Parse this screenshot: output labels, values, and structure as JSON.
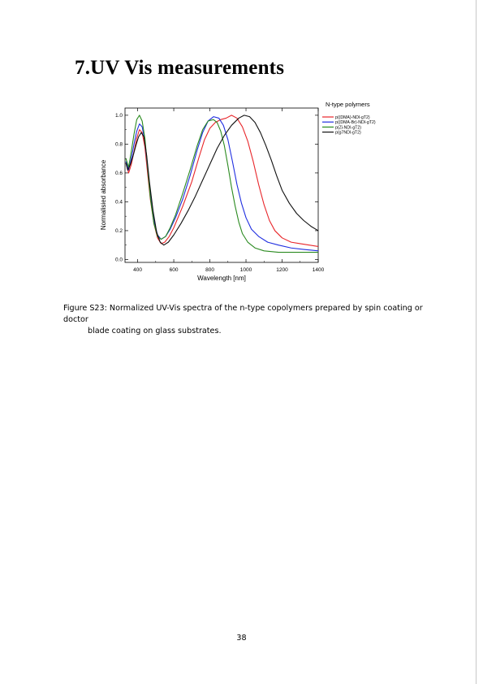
{
  "section": {
    "title": "7.UV Vis measurements"
  },
  "figure": {
    "caption_line1": "Figure S23: Normalized UV-Vis spectra of the n-type copolymers prepared by spin coating or doctor",
    "caption_line2": "blade coating on glass substrates."
  },
  "page_number": "38",
  "chart_data": {
    "type": "line",
    "title": "",
    "legend_title": "N-type polymers",
    "legend_position": "top-right",
    "xlabel": "Wavelength [nm]",
    "ylabel": "Normalisied absorbance",
    "xlim": [
      330,
      1400
    ],
    "ylim": [
      -0.02,
      1.05
    ],
    "xticks": [
      400,
      600,
      800,
      1000,
      1200,
      1400
    ],
    "xtick_labels": [
      "400",
      "600",
      "800",
      "1000",
      "1200",
      "1400"
    ],
    "yticks": [
      0.0,
      0.2,
      0.4,
      0.6,
      0.8,
      1.0
    ],
    "ytick_labels": [
      "0.0",
      "0.2",
      "0.4",
      "0.6",
      "0.8",
      "1.0"
    ],
    "grid": false,
    "series": [
      {
        "name": "p((DMA)-NDI-gT2)",
        "color": "#e8262a",
        "points": [
          [
            335,
            0.67
          ],
          [
            350,
            0.6
          ],
          [
            365,
            0.66
          ],
          [
            380,
            0.75
          ],
          [
            395,
            0.84
          ],
          [
            410,
            0.9
          ],
          [
            425,
            0.88
          ],
          [
            440,
            0.78
          ],
          [
            455,
            0.6
          ],
          [
            470,
            0.42
          ],
          [
            490,
            0.25
          ],
          [
            510,
            0.15
          ],
          [
            530,
            0.11
          ],
          [
            550,
            0.12
          ],
          [
            575,
            0.16
          ],
          [
            600,
            0.22
          ],
          [
            650,
            0.37
          ],
          [
            700,
            0.54
          ],
          [
            740,
            0.71
          ],
          [
            770,
            0.83
          ],
          [
            800,
            0.91
          ],
          [
            830,
            0.95
          ],
          [
            860,
            0.97
          ],
          [
            890,
            0.98
          ],
          [
            920,
            1.0
          ],
          [
            950,
            0.98
          ],
          [
            980,
            0.92
          ],
          [
            1010,
            0.82
          ],
          [
            1040,
            0.68
          ],
          [
            1070,
            0.52
          ],
          [
            1100,
            0.38
          ],
          [
            1130,
            0.27
          ],
          [
            1160,
            0.2
          ],
          [
            1200,
            0.15
          ],
          [
            1250,
            0.12
          ],
          [
            1300,
            0.11
          ],
          [
            1350,
            0.1
          ],
          [
            1400,
            0.09
          ]
        ]
      },
      {
        "name": "p((DMA-Br)-NDI-gT2)",
        "color": "#1f2ee0",
        "points": [
          [
            335,
            0.68
          ],
          [
            350,
            0.62
          ],
          [
            365,
            0.7
          ],
          [
            380,
            0.8
          ],
          [
            395,
            0.89
          ],
          [
            410,
            0.94
          ],
          [
            425,
            0.92
          ],
          [
            440,
            0.82
          ],
          [
            455,
            0.64
          ],
          [
            470,
            0.45
          ],
          [
            490,
            0.27
          ],
          [
            510,
            0.17
          ],
          [
            530,
            0.14
          ],
          [
            555,
            0.16
          ],
          [
            580,
            0.21
          ],
          [
            610,
            0.29
          ],
          [
            650,
            0.42
          ],
          [
            690,
            0.58
          ],
          [
            730,
            0.76
          ],
          [
            760,
            0.88
          ],
          [
            790,
            0.96
          ],
          [
            820,
            0.99
          ],
          [
            850,
            0.98
          ],
          [
            875,
            0.93
          ],
          [
            900,
            0.83
          ],
          [
            925,
            0.68
          ],
          [
            950,
            0.52
          ],
          [
            975,
            0.39
          ],
          [
            1000,
            0.29
          ],
          [
            1030,
            0.21
          ],
          [
            1070,
            0.16
          ],
          [
            1120,
            0.12
          ],
          [
            1180,
            0.1
          ],
          [
            1250,
            0.08
          ],
          [
            1320,
            0.07
          ],
          [
            1400,
            0.06
          ]
        ]
      },
      {
        "name": "p(Zi-NDI-gT2)",
        "color": "#2a8a1f",
        "points": [
          [
            335,
            0.7
          ],
          [
            350,
            0.64
          ],
          [
            365,
            0.75
          ],
          [
            380,
            0.87
          ],
          [
            395,
            0.97
          ],
          [
            410,
            1.0
          ],
          [
            425,
            0.96
          ],
          [
            440,
            0.84
          ],
          [
            455,
            0.64
          ],
          [
            470,
            0.43
          ],
          [
            490,
            0.25
          ],
          [
            510,
            0.16
          ],
          [
            530,
            0.14
          ],
          [
            555,
            0.16
          ],
          [
            580,
            0.22
          ],
          [
            610,
            0.31
          ],
          [
            650,
            0.46
          ],
          [
            690,
            0.62
          ],
          [
            730,
            0.79
          ],
          [
            760,
            0.9
          ],
          [
            790,
            0.96
          ],
          [
            820,
            0.97
          ],
          [
            840,
            0.95
          ],
          [
            860,
            0.89
          ],
          [
            880,
            0.79
          ],
          [
            900,
            0.65
          ],
          [
            920,
            0.5
          ],
          [
            940,
            0.37
          ],
          [
            960,
            0.26
          ],
          [
            980,
            0.18
          ],
          [
            1010,
            0.12
          ],
          [
            1050,
            0.08
          ],
          [
            1100,
            0.06
          ],
          [
            1180,
            0.05
          ],
          [
            1300,
            0.05
          ],
          [
            1400,
            0.05
          ]
        ]
      },
      {
        "name": "p(g7NDI-gT2)",
        "color": "#111111",
        "points": [
          [
            335,
            0.67
          ],
          [
            345,
            0.62
          ],
          [
            360,
            0.66
          ],
          [
            375,
            0.72
          ],
          [
            390,
            0.79
          ],
          [
            405,
            0.85
          ],
          [
            420,
            0.88
          ],
          [
            435,
            0.85
          ],
          [
            450,
            0.72
          ],
          [
            465,
            0.54
          ],
          [
            485,
            0.34
          ],
          [
            505,
            0.19
          ],
          [
            525,
            0.12
          ],
          [
            545,
            0.1
          ],
          [
            570,
            0.12
          ],
          [
            600,
            0.17
          ],
          [
            640,
            0.25
          ],
          [
            680,
            0.34
          ],
          [
            720,
            0.44
          ],
          [
            760,
            0.55
          ],
          [
            800,
            0.66
          ],
          [
            840,
            0.77
          ],
          [
            880,
            0.86
          ],
          [
            920,
            0.93
          ],
          [
            960,
            0.98
          ],
          [
            990,
            1.0
          ],
          [
            1020,
            0.99
          ],
          [
            1050,
            0.95
          ],
          [
            1080,
            0.88
          ],
          [
            1110,
            0.79
          ],
          [
            1140,
            0.69
          ],
          [
            1170,
            0.58
          ],
          [
            1200,
            0.48
          ],
          [
            1240,
            0.39
          ],
          [
            1280,
            0.32
          ],
          [
            1320,
            0.27
          ],
          [
            1360,
            0.23
          ],
          [
            1400,
            0.2
          ]
        ]
      }
    ]
  }
}
